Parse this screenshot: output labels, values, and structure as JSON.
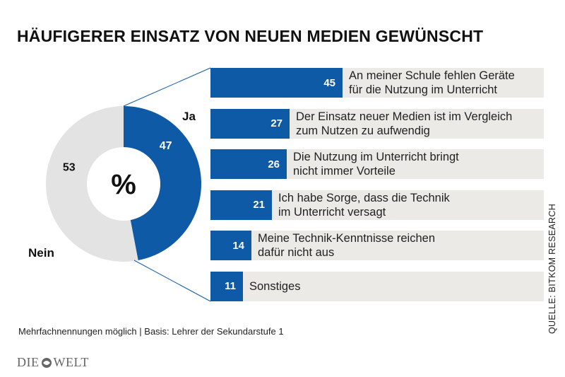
{
  "title": "HÄUFIGERER EINSATZ VON NEUEN MEDIEN GEWÜNSCHT",
  "footnote": "Mehrfachnennungen möglich | Basis: Lehrer der Sekundarstufe 1",
  "source": "QUELLE: BITKOM RESEARCH",
  "logo": {
    "left": "DIE",
    "right": "WELT"
  },
  "colors": {
    "accent": "#0e5aa7",
    "pie_gray": "#e3e3e3",
    "row_bg": "#eceae6"
  },
  "chart_data": [
    {
      "type": "pie",
      "center_label": "%",
      "slices": [
        {
          "name": "Ja",
          "value": 47
        },
        {
          "name": "Nein",
          "value": 53
        }
      ]
    },
    {
      "type": "bar",
      "orientation": "horizontal",
      "categories": [
        "An meiner Schule fehlen Geräte\nfür die Nutzung im Unterricht",
        "Der Einsatz neuer Medien ist im Vergleich\nzum Nutzen zu aufwendig",
        "Die Nutzung im Unterricht bringt\nnicht immer Vorteile",
        "Ich habe Sorge, dass die Technik\nim Unterricht versagt",
        "Meine Technik-Kenntnisse reichen\ndafür nicht aus",
        "Sonstiges"
      ],
      "values": [
        45,
        27,
        26,
        21,
        14,
        11
      ]
    }
  ]
}
